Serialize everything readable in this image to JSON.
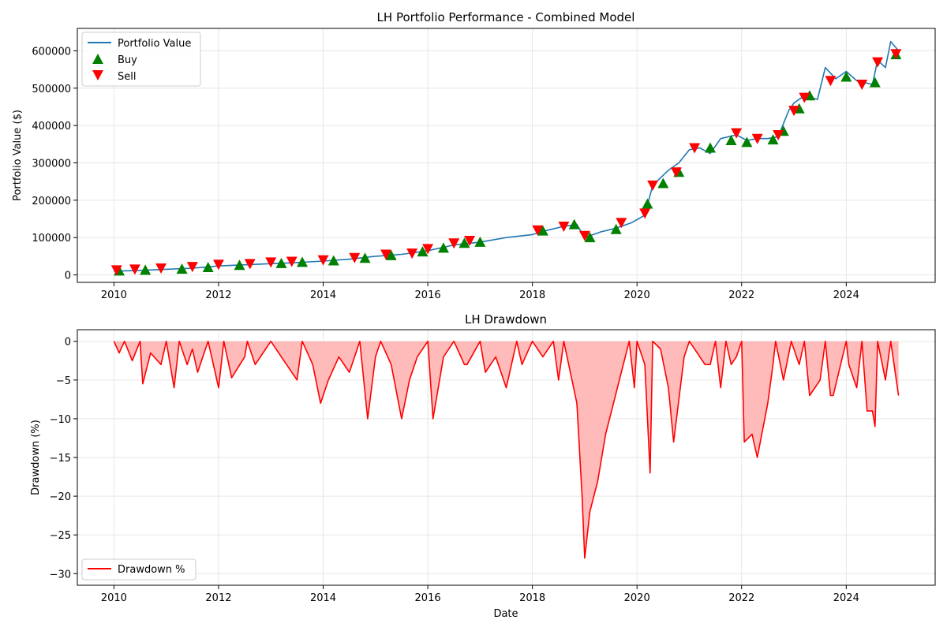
{
  "chart_data": [
    {
      "type": "line",
      "title": "LH Portfolio Performance - Combined Model",
      "xlabel": "",
      "ylabel": "Portfolio Value ($)",
      "xlim": [
        2009.3,
        2025.7
      ],
      "ylim": [
        -20000,
        660000
      ],
      "x_ticks": [
        2010,
        2012,
        2014,
        2016,
        2018,
        2020,
        2022,
        2024
      ],
      "x_tick_labels": [
        "2010",
        "2012",
        "2014",
        "2016",
        "2018",
        "2020",
        "2022",
        "2024"
      ],
      "y_ticks": [
        0,
        100000,
        200000,
        300000,
        400000,
        500000,
        600000
      ],
      "y_tick_labels": [
        "0",
        "100000",
        "200000",
        "300000",
        "400000",
        "500000",
        "600000"
      ],
      "grid": true,
      "legend_position": "top-left",
      "legend": [
        {
          "label": "Portfolio Value",
          "kind": "line",
          "color": "#1f77b4"
        },
        {
          "label": "Buy",
          "kind": "triangle-up",
          "color": "#008000"
        },
        {
          "label": "Sell",
          "kind": "triangle-down",
          "color": "#ff0000"
        }
      ],
      "series": [
        {
          "name": "Portfolio Value",
          "color": "#1f77b4",
          "x": [
            2010.0,
            2010.5,
            2011.0,
            2011.5,
            2012.0,
            2012.5,
            2013.0,
            2013.5,
            2014.0,
            2014.5,
            2015.0,
            2015.5,
            2016.0,
            2016.5,
            2017.0,
            2017.5,
            2018.0,
            2018.3,
            2018.6,
            2018.85,
            2019.0,
            2019.3,
            2019.6,
            2019.9,
            2020.15,
            2020.3,
            2020.6,
            2020.8,
            2021.0,
            2021.2,
            2021.4,
            2021.6,
            2021.9,
            2022.1,
            2022.3,
            2022.5,
            2022.7,
            2022.9,
            2023.0,
            2023.2,
            2023.45,
            2023.6,
            2023.8,
            2024.0,
            2024.2,
            2024.5,
            2024.6,
            2024.75,
            2024.85,
            2025.0
          ],
          "y": [
            10000,
            12000,
            15000,
            18000,
            24000,
            27000,
            30000,
            33000,
            37000,
            42000,
            50000,
            55000,
            65000,
            80000,
            88000,
            100000,
            108000,
            120000,
            130000,
            135000,
            100000,
            115000,
            125000,
            140000,
            160000,
            240000,
            280000,
            300000,
            335000,
            340000,
            325000,
            365000,
            375000,
            360000,
            365000,
            365000,
            370000,
            440000,
            460000,
            480000,
            470000,
            555000,
            525000,
            545000,
            520000,
            510000,
            575000,
            555000,
            625000,
            600000
          ]
        },
        {
          "name": "Buy",
          "color": "#008000",
          "marker": "triangle-up",
          "x": [
            2010.1,
            2010.6,
            2011.3,
            2011.8,
            2012.4,
            2013.2,
            2013.6,
            2014.2,
            2014.8,
            2015.3,
            2015.9,
            2016.3,
            2016.7,
            2017.0,
            2018.2,
            2018.8,
            2019.1,
            2019.6,
            2020.2,
            2020.5,
            2020.8,
            2021.4,
            2021.8,
            2022.1,
            2022.6,
            2022.8,
            2023.1,
            2023.3,
            2024.0,
            2024.55,
            2024.95
          ],
          "y": [
            11000,
            13000,
            16000,
            20000,
            26000,
            31000,
            34000,
            38000,
            45000,
            52000,
            62000,
            72000,
            85000,
            88000,
            118000,
            135000,
            100000,
            122000,
            190000,
            245000,
            275000,
            340000,
            360000,
            355000,
            362000,
            385000,
            445000,
            480000,
            530000,
            515000,
            590000
          ]
        },
        {
          "name": "Sell",
          "color": "#ff0000",
          "marker": "triangle-down",
          "x": [
            2010.05,
            2010.4,
            2010.9,
            2011.5,
            2012.0,
            2012.6,
            2013.0,
            2013.4,
            2014.0,
            2014.6,
            2015.2,
            2015.7,
            2016.0,
            2016.5,
            2016.8,
            2018.1,
            2018.6,
            2019.0,
            2019.7,
            2020.15,
            2020.3,
            2020.75,
            2021.1,
            2021.9,
            2022.3,
            2022.7,
            2023.0,
            2023.2,
            2023.7,
            2024.3,
            2024.6,
            2024.95
          ],
          "y": [
            13000,
            15000,
            18000,
            22000,
            28000,
            30000,
            34000,
            36000,
            40000,
            46000,
            55000,
            58000,
            70000,
            85000,
            92000,
            120000,
            130000,
            105000,
            140000,
            165000,
            240000,
            275000,
            340000,
            380000,
            365000,
            375000,
            440000,
            475000,
            520000,
            510000,
            570000,
            592000
          ]
        }
      ]
    },
    {
      "type": "area",
      "title": "LH Drawdown",
      "xlabel": "Date",
      "ylabel": "Drawdown (%)",
      "xlim": [
        2009.3,
        2025.7
      ],
      "ylim": [
        -31.5,
        1.5
      ],
      "x_ticks": [
        2010,
        2012,
        2014,
        2016,
        2018,
        2020,
        2022,
        2024
      ],
      "x_tick_labels": [
        "2010",
        "2012",
        "2014",
        "2016",
        "2018",
        "2020",
        "2022",
        "2024"
      ],
      "y_ticks": [
        0,
        -5,
        -10,
        -15,
        -20,
        -25,
        -30
      ],
      "y_tick_labels": [
        "0",
        "−5",
        "−10",
        "−15",
        "−20",
        "−25",
        "−30"
      ],
      "grid": true,
      "legend_position": "bottom-left",
      "legend": [
        {
          "label": "Drawdown %",
          "kind": "line",
          "color": "#ff0000"
        }
      ],
      "series": [
        {
          "name": "Drawdown %",
          "color": "#ff0000",
          "fill": "#ffb3b3",
          "x": [
            2010.0,
            2010.1,
            2010.2,
            2010.35,
            2010.5,
            2010.55,
            2010.7,
            2010.9,
            2011.0,
            2011.15,
            2011.25,
            2011.4,
            2011.5,
            2011.6,
            2011.8,
            2012.0,
            2012.1,
            2012.25,
            2012.5,
            2012.55,
            2012.7,
            2012.9,
            2013.0,
            2013.2,
            2013.5,
            2013.6,
            2013.8,
            2013.95,
            2014.1,
            2014.3,
            2014.5,
            2014.7,
            2014.85,
            2015.0,
            2015.1,
            2015.3,
            2015.5,
            2015.65,
            2015.8,
            2016.0,
            2016.1,
            2016.3,
            2016.5,
            2016.7,
            2016.75,
            2017.0,
            2017.1,
            2017.3,
            2017.5,
            2017.7,
            2017.8,
            2018.0,
            2018.2,
            2018.4,
            2018.5,
            2018.6,
            2018.85,
            2018.95,
            2019.0,
            2019.1,
            2019.25,
            2019.4,
            2019.55,
            2019.7,
            2019.85,
            2019.95,
            2020.0,
            2020.15,
            2020.25,
            2020.3,
            2020.45,
            2020.6,
            2020.7,
            2020.9,
            2021.0,
            2021.3,
            2021.4,
            2021.5,
            2021.6,
            2021.7,
            2021.8,
            2021.9,
            2022.0,
            2022.05,
            2022.2,
            2022.3,
            2022.5,
            2022.6,
            2022.65,
            2022.8,
            2022.95,
            2023.1,
            2023.2,
            2023.3,
            2023.5,
            2023.6,
            2023.7,
            2023.75,
            2024.0,
            2024.05,
            2024.2,
            2024.3,
            2024.4,
            2024.5,
            2024.55,
            2024.6,
            2024.75,
            2024.85,
            2025.0
          ],
          "y": [
            0,
            -1.5,
            0,
            -2.5,
            0,
            -5.5,
            -1.5,
            -3,
            0,
            -6,
            0,
            -3,
            -1,
            -4,
            0,
            -6,
            0,
            -4.7,
            -2,
            0,
            -3,
            -1,
            0,
            -2,
            -5,
            0,
            -3,
            -8,
            -5,
            -2,
            -4,
            0,
            -10,
            -2,
            0,
            -3,
            -10,
            -5,
            -2,
            0,
            -10,
            -2,
            0,
            -3,
            -3,
            0,
            -4,
            -2,
            -6,
            0,
            -3,
            0,
            -2,
            0,
            -5,
            0,
            -8,
            -20,
            -28,
            -22,
            -18,
            -12,
            -8,
            -4,
            0,
            -6,
            0,
            -3,
            -17,
            0,
            -1,
            -6,
            -13,
            -2,
            0,
            -3,
            -3,
            0,
            -6,
            0,
            -3,
            -2,
            0,
            -13,
            -12,
            -15,
            -8,
            -3,
            0,
            -5,
            0,
            -3,
            0,
            -7,
            -5,
            0,
            -7,
            -7,
            0,
            -3,
            -6,
            0,
            -9,
            -9,
            -11,
            0,
            -5,
            0,
            -7
          ]
        }
      ]
    }
  ]
}
